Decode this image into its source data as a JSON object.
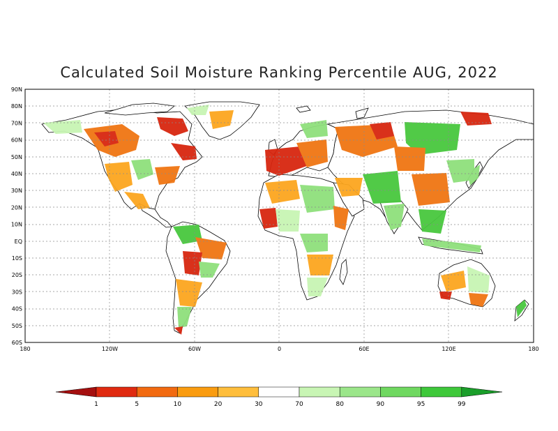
{
  "title": "Calculated Soil Moisture Ranking Percentile AUG, 2022",
  "map": {
    "lat_ticks": [
      "90N",
      "80N",
      "70N",
      "60N",
      "50N",
      "40N",
      "30N",
      "20N",
      "10N",
      "EQ",
      "10S",
      "20S",
      "30S",
      "40S",
      "50S",
      "60S"
    ],
    "lon_ticks": [
      "180",
      "120W",
      "60W",
      "0",
      "60E",
      "120E",
      "180"
    ],
    "grid": true
  },
  "colorbar": {
    "labels": [
      "1",
      "5",
      "10",
      "20",
      "30",
      "70",
      "80",
      "90",
      "95",
      "99"
    ],
    "colors": {
      "low_arrow": "#a50f0f",
      "bins": [
        "#e02a10",
        "#f26a10",
        "#fa9c10",
        "#ffbe3c",
        "#ffffff",
        "#c8f5b4",
        "#9be68a",
        "#6fd860",
        "#3ec83a"
      ],
      "high_arrow": "#1a9e2a"
    }
  },
  "palette": {
    "dry_extreme": "#d8260f",
    "dry": "#f07512",
    "dry_mod": "#fca61f",
    "dry_light": "#ffc54c",
    "wet_light": "#c8f5b4",
    "wet": "#8fe07c",
    "wet_strong": "#48c83e",
    "coast": "#000000"
  }
}
